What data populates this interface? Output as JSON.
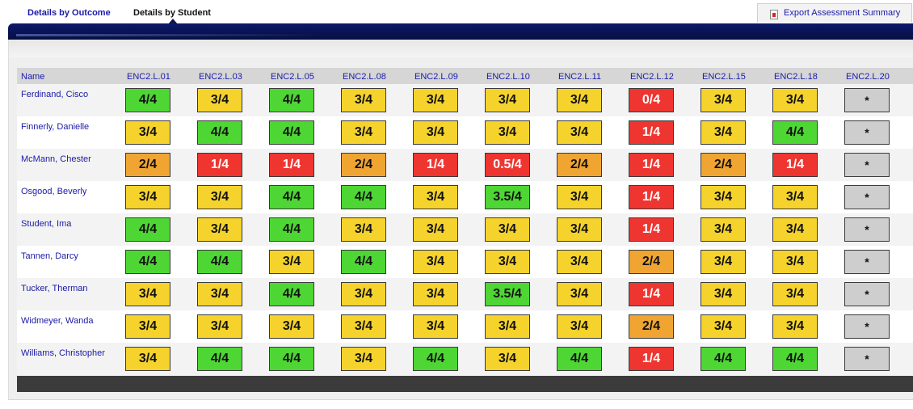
{
  "tabs": [
    {
      "label": "Details by Outcome",
      "active": false
    },
    {
      "label": "Details by Student",
      "active": true
    }
  ],
  "export_button": {
    "label": "Export Assessment Summary",
    "icon": "pdf-export-icon"
  },
  "table": {
    "name_header": "Name",
    "outcomes": [
      "ENC2.L.01",
      "ENC2.L.03",
      "ENC2.L.05",
      "ENC2.L.08",
      "ENC2.L.09",
      "ENC2.L.10",
      "ENC2.L.11",
      "ENC2.L.12",
      "ENC2.L.15",
      "ENC2.L.18",
      "ENC2.L.20"
    ],
    "students": [
      {
        "name": "Ferdinand, Cisco",
        "scores": [
          "4/4",
          "3/4",
          "4/4",
          "3/4",
          "3/4",
          "3/4",
          "3/4",
          "0/4",
          "3/4",
          "3/4",
          "*"
        ]
      },
      {
        "name": "Finnerly, Danielle",
        "scores": [
          "3/4",
          "4/4",
          "4/4",
          "3/4",
          "3/4",
          "3/4",
          "3/4",
          "1/4",
          "3/4",
          "4/4",
          "*"
        ]
      },
      {
        "name": "McMann, Chester",
        "scores": [
          "2/4",
          "1/4",
          "1/4",
          "2/4",
          "1/4",
          "0.5/4",
          "2/4",
          "1/4",
          "2/4",
          "1/4",
          "*"
        ]
      },
      {
        "name": "Osgood, Beverly",
        "scores": [
          "3/4",
          "3/4",
          "4/4",
          "4/4",
          "3/4",
          "3.5/4",
          "3/4",
          "1/4",
          "3/4",
          "3/4",
          "*"
        ]
      },
      {
        "name": "Student, Ima",
        "scores": [
          "4/4",
          "3/4",
          "4/4",
          "3/4",
          "3/4",
          "3/4",
          "3/4",
          "1/4",
          "3/4",
          "3/4",
          "*"
        ]
      },
      {
        "name": "Tannen, Darcy",
        "scores": [
          "4/4",
          "4/4",
          "3/4",
          "4/4",
          "3/4",
          "3/4",
          "3/4",
          "2/4",
          "3/4",
          "3/4",
          "*"
        ]
      },
      {
        "name": "Tucker, Therman",
        "scores": [
          "3/4",
          "3/4",
          "4/4",
          "3/4",
          "3/4",
          "3.5/4",
          "3/4",
          "1/4",
          "3/4",
          "3/4",
          "*"
        ]
      },
      {
        "name": "Widmeyer, Wanda",
        "scores": [
          "3/4",
          "3/4",
          "3/4",
          "3/4",
          "3/4",
          "3/4",
          "3/4",
          "2/4",
          "3/4",
          "3/4",
          "*"
        ]
      },
      {
        "name": "Williams, Christopher",
        "scores": [
          "3/4",
          "4/4",
          "4/4",
          "3/4",
          "4/4",
          "3/4",
          "4/4",
          "1/4",
          "4/4",
          "4/4",
          "*"
        ]
      }
    ]
  },
  "score_colors": {
    "green": "#4ed634",
    "yellow": "#f5d32c",
    "orange": "#f0a532",
    "red": "#ef3530",
    "gray": "#cecece"
  },
  "nav_color": "#0a145a",
  "link_color": "#1a1aa8"
}
